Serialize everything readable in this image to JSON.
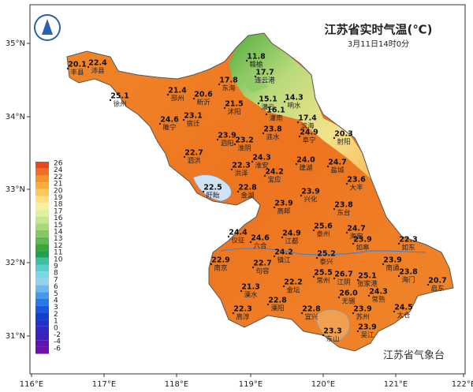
{
  "title": "江苏省实时气温(℃)",
  "subtitle": "3月11日14时0分",
  "footer": "江苏省气象台",
  "lat_labels": [
    "35°N",
    "34°N",
    "33°N",
    "32°N",
    "31°N"
  ],
  "lon_labels": [
    "116°E",
    "117°E",
    "118°E",
    "119°E",
    "120°E",
    "121°E",
    "122°E"
  ],
  "legend": [
    {
      "label": "26",
      "color": "#e24a1a"
    },
    {
      "label": "24",
      "color": "#ee6e22"
    },
    {
      "label": "22",
      "color": "#f4922c"
    },
    {
      "label": "21",
      "color": "#f7ad40"
    },
    {
      "label": "20",
      "color": "#fac95a"
    },
    {
      "label": "19",
      "color": "#fde282"
    },
    {
      "label": "18",
      "color": "#f6f0a0"
    },
    {
      "label": "17",
      "color": "#e0f0a0"
    },
    {
      "label": "16",
      "color": "#c5e68a"
    },
    {
      "label": "15",
      "color": "#a8d878"
    },
    {
      "label": "14",
      "color": "#88c864"
    },
    {
      "label": "13",
      "color": "#60b850"
    },
    {
      "label": "12",
      "color": "#38a838"
    },
    {
      "label": "11",
      "color": "#20a050"
    },
    {
      "label": "10",
      "color": "#3cc0a0"
    },
    {
      "label": "9",
      "color": "#58d0c8"
    },
    {
      "label": "8",
      "color": "#78d8e8"
    },
    {
      "label": "7",
      "color": "#98d0f0"
    },
    {
      "label": "6",
      "color": "#70b8f0"
    },
    {
      "label": "5",
      "color": "#4898f0"
    },
    {
      "label": "4",
      "color": "#2878e8"
    },
    {
      "label": "3",
      "color": "#1858e0"
    },
    {
      "label": "2",
      "color": "#1040d0"
    },
    {
      "label": "1",
      "color": "#2030c8"
    },
    {
      "label": "0",
      "color": "#3028c0"
    },
    {
      "label": "-2",
      "color": "#4020b8"
    },
    {
      "label": "-4",
      "color": "#5818b0"
    },
    {
      "label": "-6",
      "color": "#7010a8"
    }
  ],
  "stations": [
    {
      "name": "丰县",
      "temp": "20.1"
    },
    {
      "name": "沛县",
      "temp": "22.4"
    },
    {
      "name": "徐州",
      "temp": "25.1"
    },
    {
      "name": "邳州",
      "temp": "21.4"
    },
    {
      "name": "新沂",
      "temp": "20.6"
    },
    {
      "name": "睢宁",
      "temp": "24.6"
    },
    {
      "name": "宿迁",
      "temp": "23.1"
    },
    {
      "name": "东海",
      "temp": "17.8"
    },
    {
      "name": "沭阳",
      "temp": "21.5"
    },
    {
      "name": "赣榆",
      "temp": "11.8"
    },
    {
      "name": "连云港",
      "temp": "17.7"
    },
    {
      "name": "灌云",
      "temp": "15.1"
    },
    {
      "name": "灌南",
      "temp": "16.1"
    },
    {
      "name": "响水",
      "temp": "14.3"
    },
    {
      "name": "滨海",
      "temp": "17.4"
    },
    {
      "name": "阜宁",
      "temp": "24.9"
    },
    {
      "name": "射阳",
      "temp": "20.3"
    },
    {
      "name": "泗阳",
      "temp": "23.9"
    },
    {
      "name": "泗洪",
      "temp": "22.7"
    },
    {
      "name": "淮阴",
      "temp": "23.2"
    },
    {
      "name": "涟水",
      "temp": "23.8"
    },
    {
      "name": "淮安",
      "temp": "24.3"
    },
    {
      "name": "洪泽",
      "temp": "22.3"
    },
    {
      "name": "建湖",
      "temp": "24.0"
    },
    {
      "name": "盐城",
      "temp": "24.7"
    },
    {
      "name": "盱眙",
      "temp": "22.5"
    },
    {
      "name": "金湖",
      "temp": "22.8"
    },
    {
      "name": "宝应",
      "temp": "24.2"
    },
    {
      "name": "大丰",
      "temp": "23.6"
    },
    {
      "name": "兴化",
      "temp": "23.9"
    },
    {
      "name": "高邮",
      "temp": "23.9"
    },
    {
      "name": "东台",
      "temp": "23.8"
    },
    {
      "name": "仪征",
      "temp": "24.4"
    },
    {
      "name": "六合",
      "temp": "24.6"
    },
    {
      "name": "江都",
      "temp": "24.9"
    },
    {
      "name": "泰州",
      "temp": "25.6"
    },
    {
      "name": "海安",
      "temp": "24.7"
    },
    {
      "name": "如皋",
      "temp": "23.9"
    },
    {
      "name": "南京",
      "temp": "22.9"
    },
    {
      "name": "句容",
      "temp": "22.7"
    },
    {
      "name": "镇江",
      "temp": "24.2"
    },
    {
      "name": "泰兴",
      "temp": "25.2"
    },
    {
      "name": "如东",
      "temp": "22.3"
    },
    {
      "name": "南通",
      "temp": "23.9"
    },
    {
      "name": "海门",
      "temp": "23.8"
    },
    {
      "name": "启东",
      "temp": "20.7"
    },
    {
      "name": "溧水",
      "temp": "21.3"
    },
    {
      "name": "常州",
      "temp": "25.5"
    },
    {
      "name": "江阴",
      "temp": "26.7"
    },
    {
      "name": "张家港",
      "temp": "25.1"
    },
    {
      "name": "溧阳",
      "temp": "22.8"
    },
    {
      "name": "金坛",
      "temp": "22.2"
    },
    {
      "name": "宜兴",
      "temp": "22.8"
    },
    {
      "name": "无锡",
      "temp": "26.0"
    },
    {
      "name": "常熟",
      "temp": "24.3"
    },
    {
      "name": "太仓",
      "temp": "24.5"
    },
    {
      "name": "苏州",
      "temp": "23.9"
    },
    {
      "name": "吴江",
      "temp": "23.9"
    },
    {
      "name": "高淳",
      "temp": "22.3"
    },
    {
      "name": "东山",
      "temp": "23.3"
    }
  ]
}
